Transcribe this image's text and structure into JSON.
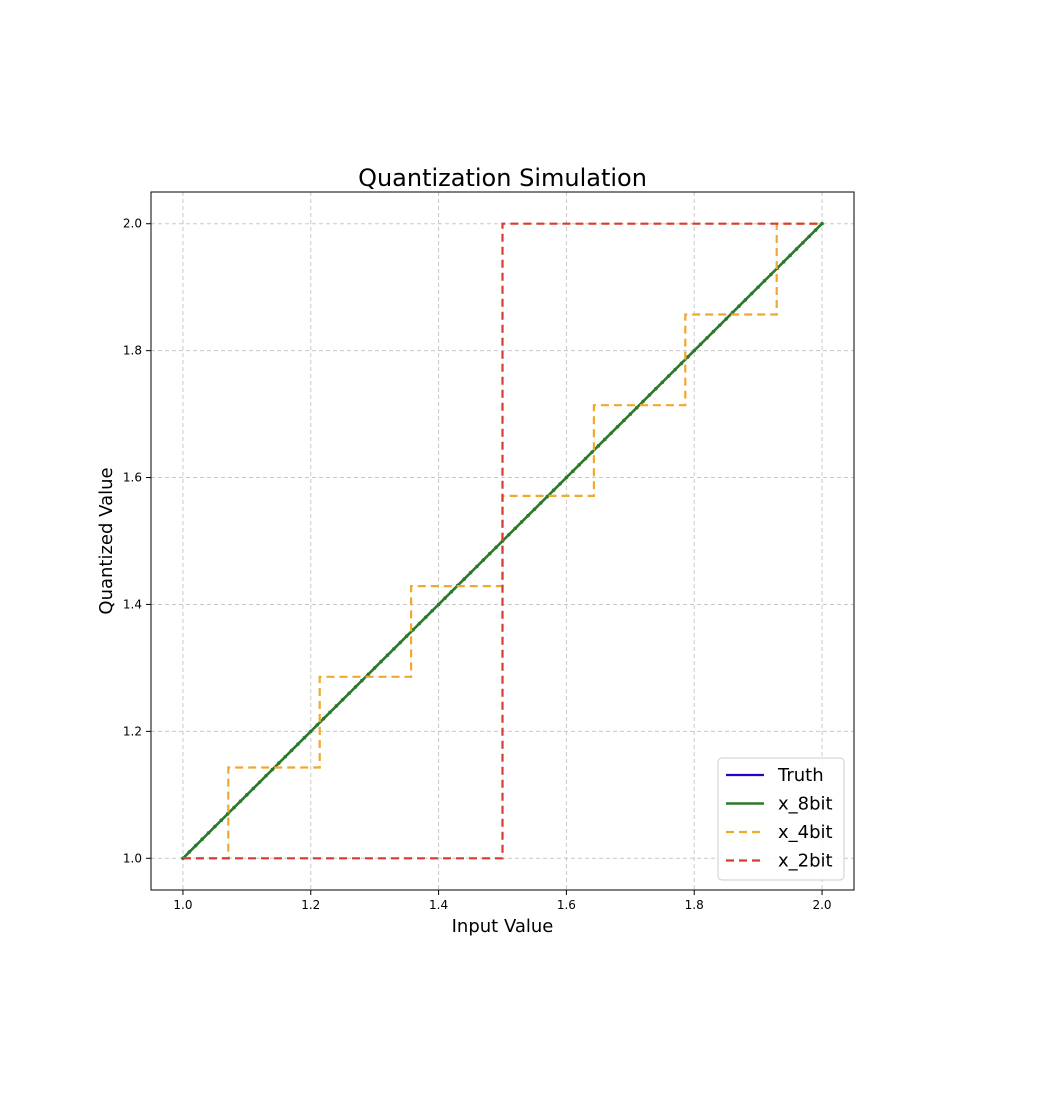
{
  "chart_data": {
    "type": "line",
    "title": "Quantization Simulation",
    "xlabel": "Input Value",
    "ylabel": "Quantized Value",
    "xlim": [
      0.95,
      2.05
    ],
    "ylim": [
      0.95,
      2.05
    ],
    "x_ticks": [
      1.0,
      1.2,
      1.4,
      1.6,
      1.8,
      2.0
    ],
    "y_ticks": [
      1.0,
      1.2,
      1.4,
      1.6,
      1.8,
      2.0
    ],
    "x_tick_labels": [
      "1.0",
      "1.2",
      "1.4",
      "1.6",
      "1.8",
      "2.0"
    ],
    "y_tick_labels": [
      "1.0",
      "1.2",
      "1.4",
      "1.6",
      "1.8",
      "2.0"
    ],
    "grid": true,
    "legend_position": "lower-right",
    "series": [
      {
        "name": "Truth",
        "color": "#2b00c8",
        "style": "solid",
        "x": [
          1.0,
          2.0
        ],
        "y": [
          1.0,
          2.0
        ]
      },
      {
        "name": "x_8bit",
        "color": "#2a7a2a",
        "style": "solid-dotted",
        "x": [
          1.0,
          2.0
        ],
        "y": [
          1.0,
          2.0
        ]
      },
      {
        "name": "x_4bit",
        "color": "#f2a72e",
        "style": "dashed-step",
        "x": [
          1.0,
          1.071,
          1.071,
          1.214,
          1.214,
          1.357,
          1.357,
          1.5,
          1.5,
          1.643,
          1.643,
          1.786,
          1.786,
          1.929,
          1.929,
          2.0
        ],
        "y": [
          1.0,
          1.0,
          1.143,
          1.143,
          1.286,
          1.286,
          1.429,
          1.429,
          1.571,
          1.571,
          1.714,
          1.714,
          1.857,
          1.857,
          2.0,
          2.0
        ]
      },
      {
        "name": "x_2bit",
        "color": "#d93b30",
        "style": "dashed-step",
        "x": [
          1.0,
          1.5,
          1.5,
          2.0
        ],
        "y": [
          1.0,
          1.0,
          2.0,
          2.0
        ]
      }
    ]
  }
}
